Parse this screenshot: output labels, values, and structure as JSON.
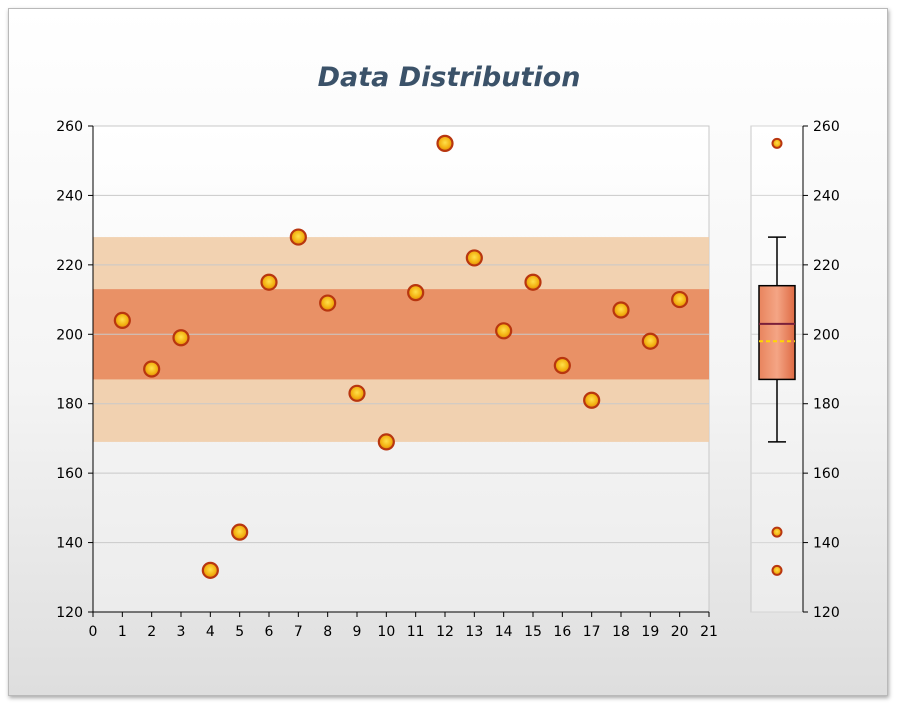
{
  "chart_data": [
    {
      "type": "scatter",
      "title": "Data Distribution",
      "xlim": [
        0,
        21
      ],
      "ylim": [
        120,
        260
      ],
      "x_ticks": [
        "0",
        "1",
        "2",
        "3",
        "4",
        "5",
        "6",
        "7",
        "8",
        "9",
        "10",
        "11",
        "12",
        "13",
        "14",
        "15",
        "16",
        "17",
        "18",
        "19",
        "20",
        "21"
      ],
      "y_ticks": [
        "120",
        "140",
        "160",
        "180",
        "200",
        "220",
        "240",
        "260"
      ],
      "grid": true,
      "points": [
        {
          "x": 1,
          "y": 204
        },
        {
          "x": 2,
          "y": 190
        },
        {
          "x": 3,
          "y": 199
        },
        {
          "x": 4,
          "y": 132
        },
        {
          "x": 5,
          "y": 143
        },
        {
          "x": 6,
          "y": 215
        },
        {
          "x": 7,
          "y": 228
        },
        {
          "x": 8,
          "y": 209
        },
        {
          "x": 9,
          "y": 183
        },
        {
          "x": 10,
          "y": 169
        },
        {
          "x": 11,
          "y": 212
        },
        {
          "x": 12,
          "y": 255
        },
        {
          "x": 13,
          "y": 222
        },
        {
          "x": 14,
          "y": 201
        },
        {
          "x": 15,
          "y": 215
        },
        {
          "x": 16,
          "y": 191
        },
        {
          "x": 17,
          "y": 181
        },
        {
          "x": 18,
          "y": 207
        },
        {
          "x": 19,
          "y": 198
        },
        {
          "x": 20,
          "y": 210
        }
      ],
      "bands": [
        {
          "from": 169,
          "to": 228,
          "color": "#f1cda9"
        },
        {
          "from": 187,
          "to": 213,
          "color": "#e88a5e"
        }
      ],
      "colors": {
        "marker_fill": "#f3b111",
        "marker_edge": "#b8360f"
      }
    },
    {
      "type": "boxplot",
      "ylim": [
        120,
        260
      ],
      "y_ticks": [
        "120",
        "140",
        "160",
        "180",
        "200",
        "220",
        "240",
        "260"
      ],
      "whisker_low": 169,
      "q1": 187,
      "median": 203,
      "mean": 198,
      "q3": 214,
      "whisker_high": 228,
      "outliers": [
        255,
        143,
        132
      ],
      "colors": {
        "box": "#e2734c",
        "mean_line": "#ffd700"
      }
    }
  ]
}
